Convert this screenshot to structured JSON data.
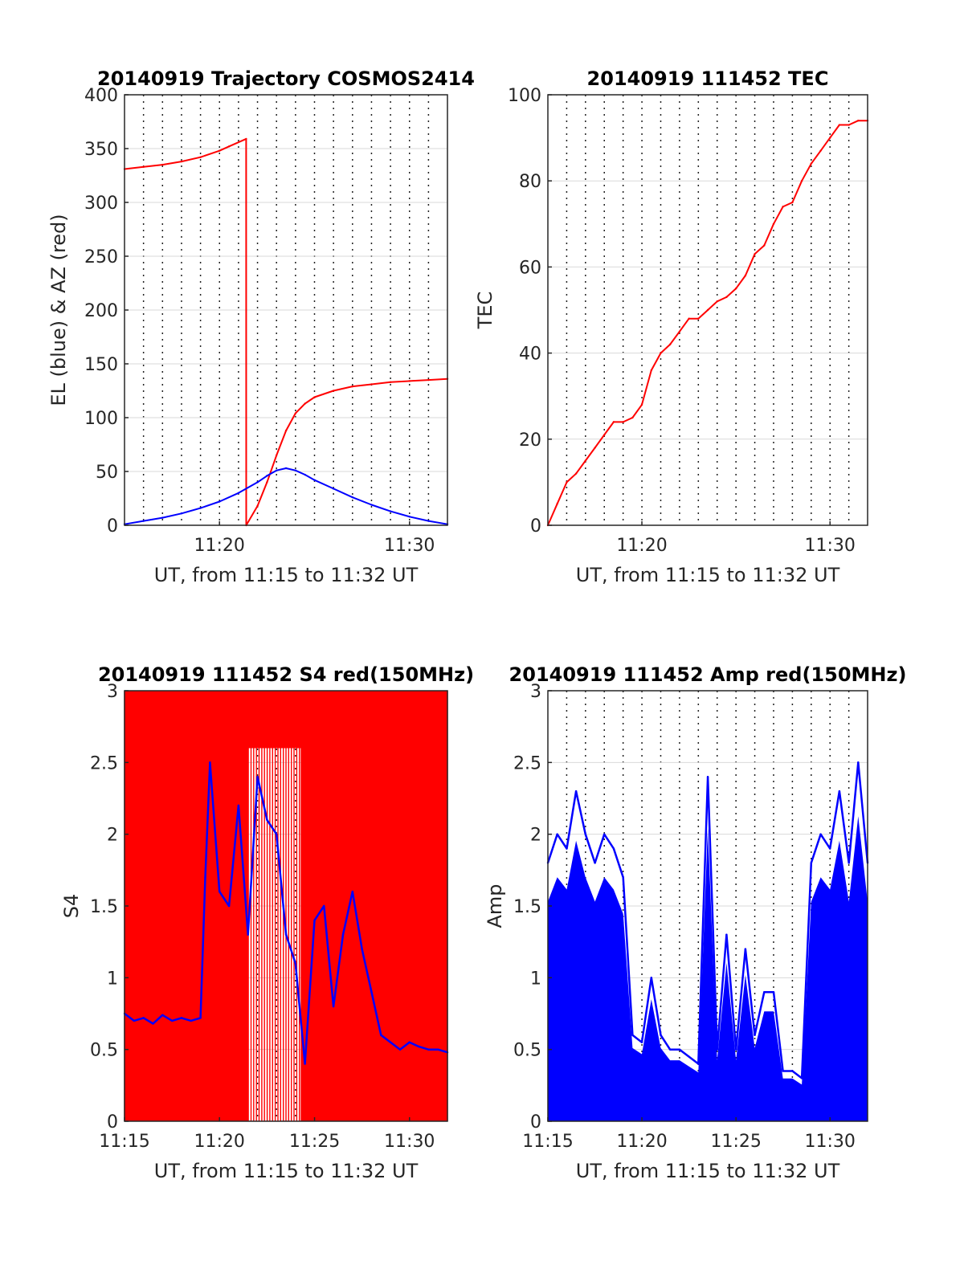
{
  "chart_data": [
    {
      "type": "line",
      "title": "20140919 Trajectory COSMOS2414",
      "xlabel": "UT, from 11:15 to 11:32 UT",
      "ylabel": "EL (blue) & AZ (red)",
      "xlim": [
        11.25,
        11.5333
      ],
      "ylim": [
        0,
        400
      ],
      "xticks": [
        11.3333,
        11.5
      ],
      "xtick_labels": [
        "11:20",
        "11:30"
      ],
      "yticks": [
        0,
        50,
        100,
        150,
        200,
        250,
        300,
        350,
        400
      ],
      "ytick_labels": [
        "0",
        "50",
        "100",
        "150",
        "200",
        "250",
        "300",
        "350",
        "400"
      ],
      "grid": true,
      "series": [
        {
          "color": "#ff0000",
          "x": [
            11.25,
            11.2667,
            11.2833,
            11.3,
            11.3167,
            11.3333,
            11.3417,
            11.3567,
            11.3568,
            11.3667,
            11.375,
            11.3833,
            11.3917,
            11.4,
            11.4083,
            11.4167,
            11.4333,
            11.45,
            11.4667,
            11.4833,
            11.5,
            11.5167,
            11.5333
          ],
          "values": [
            331,
            333,
            335,
            338,
            342,
            348,
            352,
            359,
            0,
            18,
            40,
            65,
            88,
            104,
            113,
            119,
            125,
            129,
            131,
            133,
            134,
            135,
            136
          ]
        },
        {
          "color": "#0000ff",
          "x": [
            11.25,
            11.2667,
            11.2833,
            11.3,
            11.3167,
            11.3333,
            11.35,
            11.3667,
            11.375,
            11.3833,
            11.3917,
            11.4,
            11.4083,
            11.4167,
            11.4333,
            11.45,
            11.4667,
            11.4833,
            11.5,
            11.5167,
            11.5333
          ],
          "values": [
            1,
            4,
            7,
            11,
            16,
            22,
            30,
            40,
            46,
            51,
            53,
            51,
            47,
            42,
            34,
            26,
            19,
            13,
            8,
            4,
            1
          ]
        }
      ]
    },
    {
      "type": "line",
      "title": "20140919 111452 TEC",
      "xlabel": "UT, from 11:15 to 11:32 UT",
      "ylabel": "TEC",
      "xlim": [
        11.25,
        11.5333
      ],
      "ylim": [
        0,
        100
      ],
      "xticks": [
        11.3333,
        11.5
      ],
      "xtick_labels": [
        "11:20",
        "11:30"
      ],
      "yticks": [
        0,
        20,
        40,
        60,
        80,
        100
      ],
      "ytick_labels": [
        "0",
        "20",
        "40",
        "60",
        "80",
        "100"
      ],
      "grid": true,
      "series": [
        {
          "color": "#ff0000",
          "x": [
            11.25,
            11.2583,
            11.2667,
            11.275,
            11.2833,
            11.2917,
            11.3,
            11.3083,
            11.3167,
            11.325,
            11.3333,
            11.3417,
            11.35,
            11.3583,
            11.3667,
            11.375,
            11.3833,
            11.3917,
            11.4,
            11.4083,
            11.4167,
            11.425,
            11.4333,
            11.4417,
            11.45,
            11.4583,
            11.4667,
            11.475,
            11.4833,
            11.4917,
            11.5,
            11.5083,
            11.5167,
            11.525,
            11.5333
          ],
          "values": [
            0,
            5,
            10,
            12,
            15,
            18,
            21,
            24,
            24,
            25,
            28,
            36,
            40,
            42,
            45,
            48,
            48,
            50,
            52,
            53,
            55,
            58,
            63,
            65,
            70,
            74,
            75,
            80,
            84,
            87,
            90,
            93,
            93,
            94,
            94
          ]
        }
      ]
    },
    {
      "type": "line",
      "title": "20140919 111452 S4 red(150MHz)",
      "xlabel": "UT, from 11:15 to 11:32 UT",
      "ylabel": "S4",
      "xlim": [
        11.25,
        11.5333
      ],
      "ylim": [
        0,
        3
      ],
      "xticks": [
        11.25,
        11.3333,
        11.4167,
        11.5
      ],
      "xtick_labels": [
        "11:15",
        "11:20",
        "11:25",
        "11:30"
      ],
      "yticks": [
        0,
        0.5,
        1,
        1.5,
        2,
        2.5,
        3
      ],
      "ytick_labels": [
        "0",
        "0.5",
        "1",
        "1.5",
        "2",
        "2.5",
        "3"
      ],
      "grid": true,
      "series": [
        {
          "color": "#ff0000",
          "note_values": "dense oscillation filling 0 to 3 across most of the interval",
          "x": [
            11.25,
            11.3167,
            11.3333,
            11.3583,
            11.3833,
            11.4083,
            11.425,
            11.45,
            11.4667,
            11.5,
            11.5333
          ],
          "values": [
            3,
            3,
            3,
            3,
            3,
            0,
            3,
            3,
            3,
            3,
            3
          ]
        },
        {
          "color": "#0000ff",
          "x": [
            11.25,
            11.2583,
            11.2667,
            11.275,
            11.2833,
            11.2917,
            11.3,
            11.3083,
            11.3167,
            11.3208,
            11.325,
            11.3333,
            11.3417,
            11.35,
            11.3583,
            11.3667,
            11.375,
            11.3833,
            11.3917,
            11.4,
            11.4083,
            11.4167,
            11.425,
            11.4333,
            11.4417,
            11.45,
            11.4583,
            11.4667,
            11.475,
            11.4833,
            11.4917,
            11.5,
            11.5083,
            11.5167,
            11.525,
            11.5333
          ],
          "values": [
            0.75,
            0.7,
            0.72,
            0.68,
            0.74,
            0.7,
            0.72,
            0.7,
            0.72,
            1.7,
            2.5,
            1.6,
            1.5,
            2.2,
            1.3,
            2.4,
            2.1,
            2.0,
            1.3,
            1.1,
            0.4,
            1.4,
            1.5,
            0.8,
            1.3,
            1.6,
            1.2,
            0.9,
            0.6,
            0.55,
            0.5,
            0.55,
            0.52,
            0.5,
            0.5,
            0.48
          ]
        }
      ]
    },
    {
      "type": "line",
      "title": "20140919 111452 Amp red(150MHz)",
      "xlabel": "UT, from 11:15 to 11:32 UT",
      "ylabel": "Amp",
      "xlim": [
        11.25,
        11.5333
      ],
      "ylim": [
        0,
        3
      ],
      "xticks": [
        11.25,
        11.3333,
        11.4167,
        11.5
      ],
      "xtick_labels": [
        "11:15",
        "11:20",
        "11:25",
        "11:30"
      ],
      "yticks": [
        0,
        0.5,
        1,
        1.5,
        2,
        2.5,
        3
      ],
      "ytick_labels": [
        "0",
        "0.5",
        "1",
        "1.5",
        "2",
        "2.5",
        "3"
      ],
      "grid": true,
      "series": [
        {
          "color": "#0000ff",
          "x": [
            11.25,
            11.2583,
            11.2667,
            11.275,
            11.2833,
            11.2917,
            11.3,
            11.3083,
            11.3167,
            11.325,
            11.3333,
            11.3417,
            11.35,
            11.3583,
            11.3667,
            11.375,
            11.3833,
            11.3917,
            11.4,
            11.4083,
            11.4167,
            11.425,
            11.4333,
            11.4417,
            11.45,
            11.4583,
            11.4667,
            11.475,
            11.4833,
            11.4917,
            11.5,
            11.5083,
            11.5167,
            11.525,
            11.5333
          ],
          "values": [
            1.8,
            2.0,
            1.9,
            2.3,
            2.0,
            1.8,
            2.0,
            1.9,
            1.7,
            0.6,
            0.55,
            1.0,
            0.6,
            0.5,
            0.5,
            0.45,
            0.4,
            2.4,
            0.5,
            1.3,
            0.5,
            1.2,
            0.6,
            0.9,
            0.9,
            0.35,
            0.35,
            0.3,
            1.8,
            2.0,
            1.9,
            2.3,
            1.8,
            2.5,
            1.8
          ]
        }
      ]
    }
  ]
}
